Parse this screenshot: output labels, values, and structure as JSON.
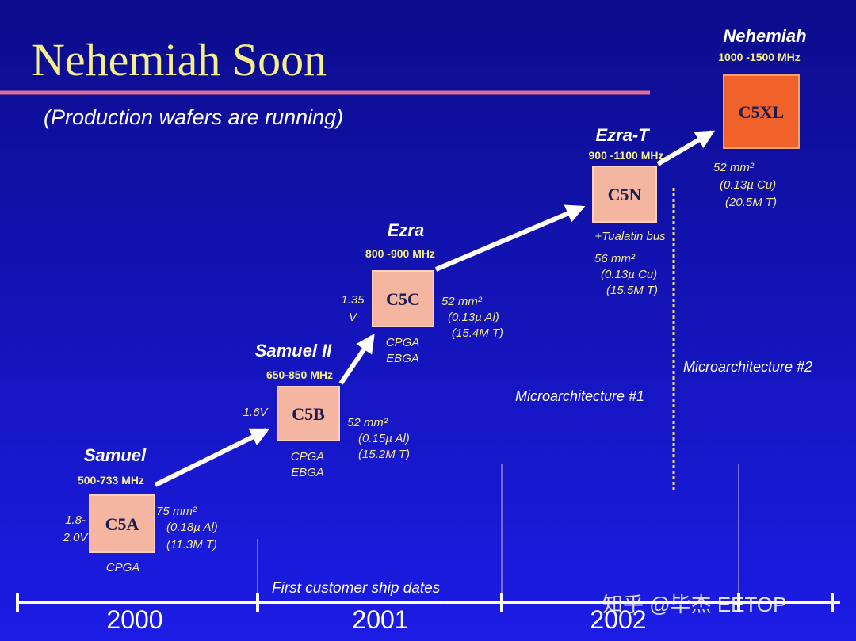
{
  "header": {
    "title": "Nehemiah Soon",
    "subtitle": "(Production wafers are running)"
  },
  "nodes": [
    {
      "name": "Samuel",
      "frequency": "500-733 MHz",
      "chip": "C5A",
      "voltage": [
        "1.8-",
        "2.0V"
      ],
      "specs": [
        "75 mm²",
        "(0.18µ Al)",
        "(11.3M T)"
      ],
      "notes": [
        "CPGA"
      ]
    },
    {
      "name": "Samuel II",
      "frequency": "650-850 MHz",
      "chip": "C5B",
      "voltage": [
        "1.6V"
      ],
      "specs": [
        "52 mm²",
        "(0.15µ Al)",
        "(15.2M T)"
      ],
      "notes": [
        "CPGA",
        "EBGA"
      ]
    },
    {
      "name": "Ezra",
      "frequency": "800 -900 MHz",
      "chip": "C5C",
      "voltage": [
        "1.35",
        "V"
      ],
      "specs": [
        "52 mm²",
        "(0.13µ Al)",
        "(15.4M T)"
      ],
      "notes": [
        "CPGA",
        "EBGA"
      ]
    },
    {
      "name": "Ezra-T",
      "frequency": "900 -1100 MHz",
      "chip": "C5N",
      "voltage": [],
      "specs": [
        "56 mm²",
        "(0.13µ Cu)",
        "(15.5M T)"
      ],
      "notes": [
        "+Tualatin bus"
      ]
    },
    {
      "name": "Nehemiah",
      "frequency": "1000 -1500 MHz",
      "chip": "C5XL",
      "voltage": [],
      "specs": [
        "52 mm²",
        "(0.13µ Cu)",
        "(20.5M T)"
      ],
      "notes": []
    }
  ],
  "microarchitectures": [
    "Microarchitecture #1",
    "Microarchitecture #2"
  ],
  "timeline": {
    "caption": "First customer ship dates",
    "years": [
      "2000",
      "2001",
      "2002"
    ]
  },
  "watermark": "知乎 @毕杰 EETOP"
}
